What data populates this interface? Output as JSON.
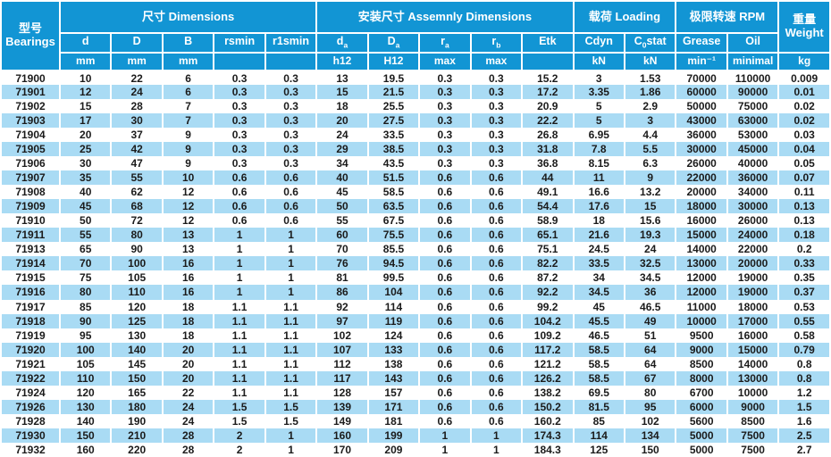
{
  "colors": {
    "header_blue": "#1295d4",
    "stripe_blue": "#a9dbf4",
    "text_dark": "#1b1b1b",
    "header_text": "#ffffff"
  },
  "table": {
    "header": {
      "bearings_cn": "型号",
      "bearings_en": "Bearings",
      "groups": [
        {
          "label": "尺寸 Dimensions"
        },
        {
          "label": "安装尺寸 Assemnly Dimensions"
        },
        {
          "label": "载荷 Loading"
        },
        {
          "label": "极限转速 RPM"
        }
      ],
      "weight_cn": "重量",
      "weight_en": "Weight"
    },
    "sub_headers": [
      {
        "main": "d"
      },
      {
        "main": "D"
      },
      {
        "main": "B"
      },
      {
        "main": "rsmin"
      },
      {
        "main": "r1smin"
      },
      {
        "main": "d",
        "sub": "a"
      },
      {
        "main": "D",
        "sub": "a"
      },
      {
        "main": "r",
        "sub": "a"
      },
      {
        "main": "r",
        "sub": "b"
      },
      {
        "main": "Etk"
      },
      {
        "main": "Cdyn"
      },
      {
        "main": "C",
        "sub": "0",
        "suffix": "stat"
      },
      {
        "main": "Grease"
      },
      {
        "main": "Oil"
      }
    ],
    "units": [
      "mm",
      "mm",
      "mm",
      "",
      "",
      "h12",
      "H12",
      "max",
      "max",
      "",
      "kN",
      "kN",
      "min⁻¹",
      "minimal",
      "kg"
    ],
    "column_keys": [
      "bearing",
      "d",
      "D",
      "B",
      "rsmin",
      "r1smin",
      "da",
      "Da",
      "ra",
      "rb",
      "Etk",
      "Cdyn",
      "C0stat",
      "grease",
      "oil",
      "weight"
    ],
    "rows": [
      [
        "71900",
        "10",
        "22",
        "6",
        "0.3",
        "0.3",
        "13",
        "19.5",
        "0.3",
        "0.3",
        "15.2",
        "3",
        "1.53",
        "70000",
        "110000",
        "0.009"
      ],
      [
        "71901",
        "12",
        "24",
        "6",
        "0.3",
        "0.3",
        "15",
        "21.5",
        "0.3",
        "0.3",
        "17.2",
        "3.35",
        "1.86",
        "60000",
        "90000",
        "0.01"
      ],
      [
        "71902",
        "15",
        "28",
        "7",
        "0.3",
        "0.3",
        "18",
        "25.5",
        "0.3",
        "0.3",
        "20.9",
        "5",
        "2.9",
        "50000",
        "75000",
        "0.02"
      ],
      [
        "71903",
        "17",
        "30",
        "7",
        "0.3",
        "0.3",
        "20",
        "27.5",
        "0.3",
        "0.3",
        "22.2",
        "5",
        "3",
        "43000",
        "63000",
        "0.02"
      ],
      [
        "71904",
        "20",
        "37",
        "9",
        "0.3",
        "0.3",
        "24",
        "33.5",
        "0.3",
        "0.3",
        "26.8",
        "6.95",
        "4.4",
        "36000",
        "53000",
        "0.03"
      ],
      [
        "71905",
        "25",
        "42",
        "9",
        "0.3",
        "0.3",
        "29",
        "38.5",
        "0.3",
        "0.3",
        "31.8",
        "7.8",
        "5.5",
        "30000",
        "45000",
        "0.04"
      ],
      [
        "71906",
        "30",
        "47",
        "9",
        "0.3",
        "0.3",
        "34",
        "43.5",
        "0.3",
        "0.3",
        "36.8",
        "8.15",
        "6.3",
        "26000",
        "40000",
        "0.05"
      ],
      [
        "71907",
        "35",
        "55",
        "10",
        "0.6",
        "0.6",
        "40",
        "51.5",
        "0.6",
        "0.6",
        "44",
        "11",
        "9",
        "22000",
        "36000",
        "0.07"
      ],
      [
        "71908",
        "40",
        "62",
        "12",
        "0.6",
        "0.6",
        "45",
        "58.5",
        "0.6",
        "0.6",
        "49.1",
        "16.6",
        "13.2",
        "20000",
        "34000",
        "0.11"
      ],
      [
        "71909",
        "45",
        "68",
        "12",
        "0.6",
        "0.6",
        "50",
        "63.5",
        "0.6",
        "0.6",
        "54.4",
        "17.6",
        "15",
        "18000",
        "30000",
        "0.13"
      ],
      [
        "71910",
        "50",
        "72",
        "12",
        "0.6",
        "0.6",
        "55",
        "67.5",
        "0.6",
        "0.6",
        "58.9",
        "18",
        "15.6",
        "16000",
        "26000",
        "0.13"
      ],
      [
        "71911",
        "55",
        "80",
        "13",
        "1",
        "1",
        "60",
        "75.5",
        "0.6",
        "0.6",
        "65.1",
        "21.6",
        "19.3",
        "15000",
        "24000",
        "0.18"
      ],
      [
        "71913",
        "65",
        "90",
        "13",
        "1",
        "1",
        "70",
        "85.5",
        "0.6",
        "0.6",
        "75.1",
        "24.5",
        "24",
        "14000",
        "22000",
        "0.2"
      ],
      [
        "71914",
        "70",
        "100",
        "16",
        "1",
        "1",
        "76",
        "94.5",
        "0.6",
        "0.6",
        "82.2",
        "33.5",
        "32.5",
        "13000",
        "20000",
        "0.33"
      ],
      [
        "71915",
        "75",
        "105",
        "16",
        "1",
        "1",
        "81",
        "99.5",
        "0.6",
        "0.6",
        "87.2",
        "34",
        "34.5",
        "12000",
        "19000",
        "0.35"
      ],
      [
        "71916",
        "80",
        "110",
        "16",
        "1",
        "1",
        "86",
        "104",
        "0.6",
        "0.6",
        "92.2",
        "34.5",
        "36",
        "12000",
        "19000",
        "0.37"
      ],
      [
        "71917",
        "85",
        "120",
        "18",
        "1.1",
        "1.1",
        "92",
        "114",
        "0.6",
        "0.6",
        "99.2",
        "45",
        "46.5",
        "11000",
        "18000",
        "0.53"
      ],
      [
        "71918",
        "90",
        "125",
        "18",
        "1.1",
        "1.1",
        "97",
        "119",
        "0.6",
        "0.6",
        "104.2",
        "45.5",
        "49",
        "10000",
        "17000",
        "0.55"
      ],
      [
        "71919",
        "95",
        "130",
        "18",
        "1.1",
        "1.1",
        "102",
        "124",
        "0.6",
        "0.6",
        "109.2",
        "46.5",
        "51",
        "9500",
        "16000",
        "0.58"
      ],
      [
        "71920",
        "100",
        "140",
        "20",
        "1.1",
        "1.1",
        "107",
        "133",
        "0.6",
        "0.6",
        "117.2",
        "58.5",
        "64",
        "9000",
        "15000",
        "0.79"
      ],
      [
        "71921",
        "105",
        "145",
        "20",
        "1.1",
        "1.1",
        "112",
        "138",
        "0.6",
        "0.6",
        "121.2",
        "58.5",
        "64",
        "8500",
        "14000",
        "0.8"
      ],
      [
        "71922",
        "110",
        "150",
        "20",
        "1.1",
        "1.1",
        "117",
        "143",
        "0.6",
        "0.6",
        "126.2",
        "58.5",
        "67",
        "8000",
        "13000",
        "0.8"
      ],
      [
        "71924",
        "120",
        "165",
        "22",
        "1.1",
        "1.1",
        "128",
        "157",
        "0.6",
        "0.6",
        "138.2",
        "69.5",
        "80",
        "6700",
        "10000",
        "1.2"
      ],
      [
        "71926",
        "130",
        "180",
        "24",
        "1.5",
        "1.5",
        "139",
        "171",
        "0.6",
        "0.6",
        "150.2",
        "81.5",
        "95",
        "6000",
        "9000",
        "1.5"
      ],
      [
        "71928",
        "140",
        "190",
        "24",
        "1.5",
        "1.5",
        "149",
        "181",
        "0.6",
        "0.6",
        "160.2",
        "85",
        "102",
        "5600",
        "8500",
        "1.6"
      ],
      [
        "71930",
        "150",
        "210",
        "28",
        "2",
        "1",
        "160",
        "199",
        "1",
        "1",
        "174.3",
        "114",
        "134",
        "5000",
        "7500",
        "2.5"
      ],
      [
        "71932",
        "160",
        "220",
        "28",
        "2",
        "1",
        "170",
        "209",
        "1",
        "1",
        "184.3",
        "125",
        "150",
        "5000",
        "7500",
        "2.7"
      ]
    ]
  }
}
